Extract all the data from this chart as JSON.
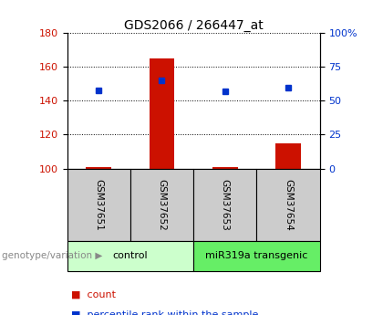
{
  "title": "GDS2066 / 266447_at",
  "samples": [
    "GSM37651",
    "GSM37652",
    "GSM37653",
    "GSM37654"
  ],
  "counts": [
    101,
    165,
    101,
    115
  ],
  "percentiles": [
    58,
    65,
    57,
    60
  ],
  "ylim_left": [
    100,
    180
  ],
  "ylim_right": [
    0,
    100
  ],
  "yticks_left": [
    100,
    120,
    140,
    160,
    180
  ],
  "yticks_right": [
    0,
    25,
    50,
    75,
    100
  ],
  "ytick_labels_right": [
    "0",
    "25",
    "50",
    "75",
    "100%"
  ],
  "bar_color": "#cc1100",
  "dot_color": "#0033cc",
  "grid_color": "#000000",
  "groups": [
    {
      "label": "control",
      "n": 2,
      "color": "#ccffcc"
    },
    {
      "label": "miR319a transgenic",
      "n": 2,
      "color": "#66ee66"
    }
  ],
  "group_label": "genotype/variation",
  "legend_count": "count",
  "legend_percentile": "percentile rank within the sample",
  "bg_color": "#ffffff",
  "plot_bg": "#ffffff",
  "tick_label_color_left": "#cc1100",
  "tick_label_color_right": "#0033cc",
  "sample_box_color": "#cccccc",
  "bar_width": 0.4
}
